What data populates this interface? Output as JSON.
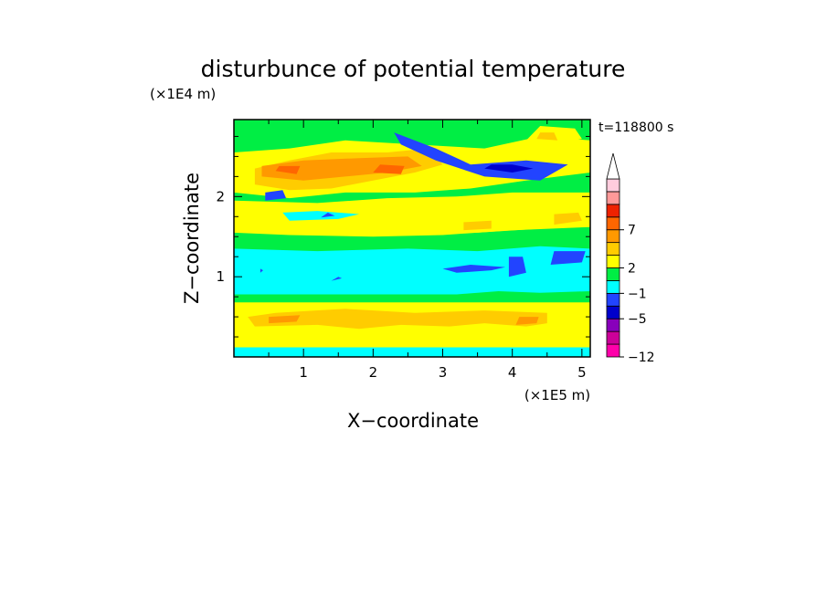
{
  "chart_data": {
    "type": "heatmap",
    "title": "disturbunce of potential temperature",
    "xlabel": "X−coordinate",
    "ylabel": "Z−coordinate",
    "x_unit": "(×1E5 m)",
    "y_unit": "(×1E4 m)",
    "time_label": "t=118800 s",
    "xlim": [
      0,
      5.12
    ],
    "ylim": [
      0,
      2.96
    ],
    "x_ticks": [
      1,
      2,
      3,
      4,
      5
    ],
    "y_ticks": [
      1,
      2
    ],
    "colorbar": {
      "colors": [
        "#ff00aa",
        "#cc0099",
        "#8800bb",
        "#0000cc",
        "#2244ff",
        "#00ffff",
        "#00ee44",
        "#ffff00",
        "#ffcc00",
        "#ff9900",
        "#ff6600",
        "#ee2200",
        "#ff9999",
        "#ffccdd"
      ],
      "labels": [
        {
          "index": 0,
          "text": "−12"
        },
        {
          "index": 3,
          "text": "−5"
        },
        {
          "index": 5,
          "text": "−1"
        },
        {
          "index": 7,
          "text": "2"
        },
        {
          "index": 10,
          "text": "7"
        }
      ],
      "extend": "max"
    },
    "regions": [
      {
        "value": 7,
        "points": [
          [
            0,
            0
          ],
          [
            5.12,
            0
          ],
          [
            5.12,
            2.96
          ],
          [
            0,
            2.96
          ]
        ]
      },
      {
        "value": 5,
        "points": [
          [
            0,
            0
          ],
          [
            5.12,
            0
          ],
          [
            5.12,
            0.2
          ],
          [
            0,
            0.2
          ]
        ]
      },
      {
        "value": 7,
        "points": [
          [
            0,
            0.12
          ],
          [
            5.12,
            0.12
          ],
          [
            5.12,
            0.28
          ],
          [
            0,
            0.28
          ]
        ]
      },
      {
        "value": 8,
        "points": [
          [
            0.3,
            0.38
          ],
          [
            1.2,
            0.4
          ],
          [
            1.8,
            0.35
          ],
          [
            2.4,
            0.4
          ],
          [
            3.1,
            0.38
          ],
          [
            3.6,
            0.42
          ],
          [
            4.2,
            0.38
          ],
          [
            4.5,
            0.42
          ],
          [
            4.5,
            0.55
          ],
          [
            3.6,
            0.58
          ],
          [
            2.6,
            0.55
          ],
          [
            1.6,
            0.6
          ],
          [
            0.6,
            0.55
          ],
          [
            0.2,
            0.5
          ]
        ]
      },
      {
        "value": 9,
        "points": [
          [
            0.5,
            0.42
          ],
          [
            0.9,
            0.44
          ],
          [
            0.95,
            0.52
          ],
          [
            0.5,
            0.5
          ]
        ]
      },
      {
        "value": 9,
        "points": [
          [
            4.05,
            0.4
          ],
          [
            4.35,
            0.42
          ],
          [
            4.38,
            0.5
          ],
          [
            4.1,
            0.5
          ]
        ]
      },
      {
        "value": 6,
        "points": [
          [
            0,
            0.68
          ],
          [
            5.12,
            0.68
          ],
          [
            5.12,
            0.82
          ],
          [
            0,
            0.82
          ]
        ]
      },
      {
        "value": 5,
        "points": [
          [
            0,
            0.78
          ],
          [
            3.2,
            0.78
          ],
          [
            3.8,
            0.82
          ],
          [
            4.4,
            0.8
          ],
          [
            5.12,
            0.82
          ],
          [
            5.12,
            1.35
          ],
          [
            4.4,
            1.4
          ],
          [
            3.5,
            1.35
          ],
          [
            2.5,
            1.38
          ],
          [
            1.4,
            1.35
          ],
          [
            0,
            1.4
          ]
        ]
      },
      {
        "value": 4,
        "points": [
          [
            3.2,
            1.05
          ],
          [
            3.7,
            1.08
          ],
          [
            3.9,
            1.12
          ],
          [
            3.4,
            1.15
          ],
          [
            3.0,
            1.1
          ]
        ]
      },
      {
        "value": 4,
        "points": [
          [
            3.95,
            1.0
          ],
          [
            4.2,
            1.05
          ],
          [
            4.15,
            1.25
          ],
          [
            3.95,
            1.25
          ]
        ]
      },
      {
        "value": 4,
        "points": [
          [
            4.55,
            1.15
          ],
          [
            5.0,
            1.18
          ],
          [
            5.05,
            1.32
          ],
          [
            4.6,
            1.32
          ]
        ]
      },
      {
        "value": 4,
        "points": [
          [
            1.4,
            0.95
          ],
          [
            1.55,
            0.98
          ],
          [
            1.5,
            1.0
          ]
        ]
      },
      {
        "value": 4,
        "points": [
          [
            0.38,
            1.05
          ],
          [
            0.42,
            1.08
          ],
          [
            0.38,
            1.1
          ]
        ]
      },
      {
        "value": 6,
        "points": [
          [
            0,
            1.35
          ],
          [
            1.2,
            1.32
          ],
          [
            2.5,
            1.35
          ],
          [
            3.5,
            1.32
          ],
          [
            4.4,
            1.38
          ],
          [
            5.12,
            1.35
          ],
          [
            5.12,
            1.65
          ],
          [
            4.4,
            1.6
          ],
          [
            3.5,
            1.55
          ],
          [
            2.5,
            1.55
          ],
          [
            1.5,
            1.52
          ],
          [
            0.5,
            1.6
          ],
          [
            0,
            1.58
          ]
        ]
      },
      {
        "value": 7,
        "points": [
          [
            0,
            1.55
          ],
          [
            0.8,
            1.52
          ],
          [
            2.0,
            1.5
          ],
          [
            3.0,
            1.52
          ],
          [
            4.0,
            1.58
          ],
          [
            5.12,
            1.62
          ],
          [
            5.12,
            2.0
          ],
          [
            4.4,
            1.95
          ],
          [
            3.4,
            1.9
          ],
          [
            2.4,
            1.88
          ],
          [
            1.2,
            1.82
          ],
          [
            0,
            1.88
          ]
        ]
      },
      {
        "value": 8,
        "points": [
          [
            3.3,
            1.58
          ],
          [
            3.7,
            1.6
          ],
          [
            3.7,
            1.7
          ],
          [
            3.3,
            1.68
          ]
        ]
      },
      {
        "value": 8,
        "points": [
          [
            4.6,
            1.65
          ],
          [
            5.0,
            1.7
          ],
          [
            4.95,
            1.8
          ],
          [
            4.6,
            1.78
          ]
        ]
      },
      {
        "value": 5,
        "points": [
          [
            0.8,
            1.7
          ],
          [
            1.5,
            1.72
          ],
          [
            1.8,
            1.78
          ],
          [
            1.2,
            1.82
          ],
          [
            0.7,
            1.8
          ]
        ]
      },
      {
        "value": 4,
        "points": [
          [
            1.25,
            1.74
          ],
          [
            1.45,
            1.76
          ],
          [
            1.35,
            1.8
          ]
        ]
      },
      {
        "value": 6,
        "points": [
          [
            0,
            1.95
          ],
          [
            1.2,
            1.92
          ],
          [
            2.2,
            1.98
          ],
          [
            3.2,
            2.0
          ],
          [
            4.0,
            2.05
          ],
          [
            5.12,
            2.05
          ],
          [
            5.12,
            2.96
          ],
          [
            0,
            2.96
          ]
        ]
      },
      {
        "value": 7,
        "points": [
          [
            0,
            2.05
          ],
          [
            0.8,
            1.98
          ],
          [
            1.6,
            2.05
          ],
          [
            2.6,
            2.05
          ],
          [
            3.4,
            2.1
          ],
          [
            4.2,
            2.2
          ],
          [
            5.12,
            2.3
          ],
          [
            5.12,
            2.7
          ],
          [
            4.4,
            2.75
          ],
          [
            3.6,
            2.6
          ],
          [
            2.6,
            2.65
          ],
          [
            1.6,
            2.7
          ],
          [
            0.8,
            2.6
          ],
          [
            0,
            2.55
          ]
        ]
      },
      {
        "value": 8,
        "points": [
          [
            0.3,
            2.15
          ],
          [
            0.8,
            2.08
          ],
          [
            1.4,
            2.1
          ],
          [
            2.0,
            2.2
          ],
          [
            2.6,
            2.3
          ],
          [
            3.0,
            2.4
          ],
          [
            2.8,
            2.6
          ],
          [
            2.2,
            2.55
          ],
          [
            1.4,
            2.55
          ],
          [
            0.8,
            2.45
          ],
          [
            0.3,
            2.35
          ]
        ]
      },
      {
        "value": 9,
        "points": [
          [
            0.4,
            2.25
          ],
          [
            1.0,
            2.2
          ],
          [
            1.6,
            2.25
          ],
          [
            2.2,
            2.3
          ],
          [
            2.7,
            2.38
          ],
          [
            2.5,
            2.5
          ],
          [
            1.8,
            2.48
          ],
          [
            1.0,
            2.45
          ],
          [
            0.4,
            2.38
          ]
        ]
      },
      {
        "value": 10,
        "points": [
          [
            2.0,
            2.3
          ],
          [
            2.4,
            2.28
          ],
          [
            2.45,
            2.38
          ],
          [
            2.1,
            2.4
          ]
        ]
      },
      {
        "value": 10,
        "points": [
          [
            0.6,
            2.32
          ],
          [
            0.9,
            2.28
          ],
          [
            0.95,
            2.38
          ],
          [
            0.65,
            2.38
          ]
        ]
      },
      {
        "value": 4,
        "points": [
          [
            2.3,
            2.8
          ],
          [
            2.9,
            2.6
          ],
          [
            3.4,
            2.4
          ],
          [
            4.2,
            2.45
          ],
          [
            4.8,
            2.4
          ],
          [
            4.4,
            2.2
          ],
          [
            3.6,
            2.25
          ],
          [
            2.9,
            2.45
          ],
          [
            2.4,
            2.65
          ]
        ]
      },
      {
        "value": 3,
        "points": [
          [
            3.6,
            2.35
          ],
          [
            4.0,
            2.3
          ],
          [
            4.3,
            2.35
          ],
          [
            4.0,
            2.4
          ],
          [
            3.7,
            2.4
          ]
        ]
      },
      {
        "value": 4,
        "points": [
          [
            0.45,
            1.95
          ],
          [
            0.75,
            1.98
          ],
          [
            0.7,
            2.08
          ],
          [
            0.45,
            2.05
          ]
        ]
      },
      {
        "value": 7,
        "points": [
          [
            4.2,
            2.7
          ],
          [
            4.6,
            2.65
          ],
          [
            5.0,
            2.72
          ],
          [
            4.9,
            2.85
          ],
          [
            4.4,
            2.88
          ]
        ]
      },
      {
        "value": 8,
        "points": [
          [
            4.35,
            2.72
          ],
          [
            4.65,
            2.7
          ],
          [
            4.6,
            2.8
          ],
          [
            4.4,
            2.8
          ]
        ]
      }
    ]
  }
}
